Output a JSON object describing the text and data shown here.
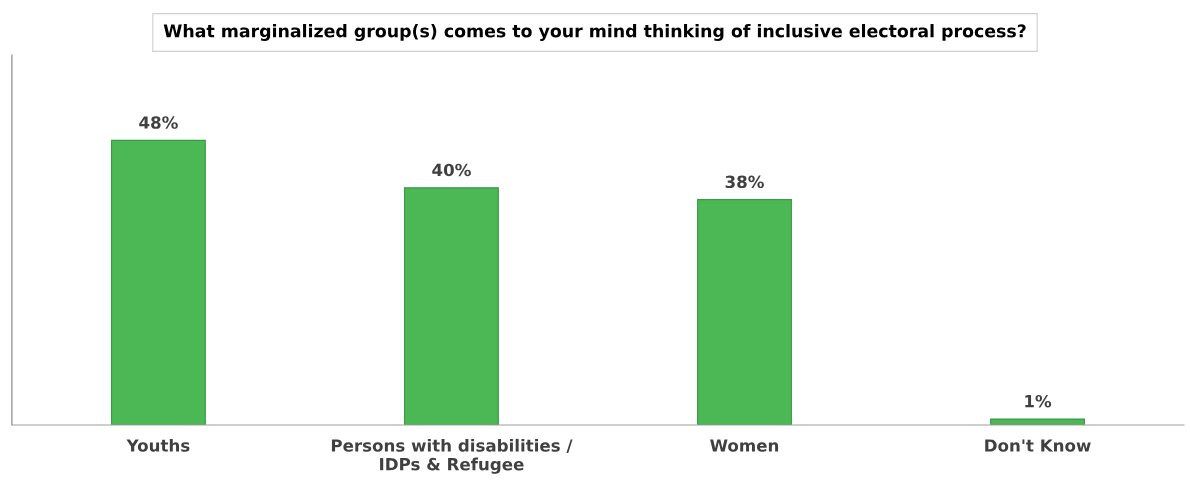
{
  "chart_data": {
    "type": "bar",
    "title": "What marginalized group(s) comes to your mind thinking of inclusive electoral process?",
    "categories": [
      "Youths",
      "Persons with disabilities /\nIDPs & Refugee",
      "Women",
      "Don't Know"
    ],
    "values": [
      48,
      40,
      38,
      1
    ],
    "value_labels": [
      "48%",
      "40%",
      "38%",
      "1%"
    ],
    "color": "#4cb755",
    "tick_labels": "x",
    "grid": false,
    "legend": false
  }
}
